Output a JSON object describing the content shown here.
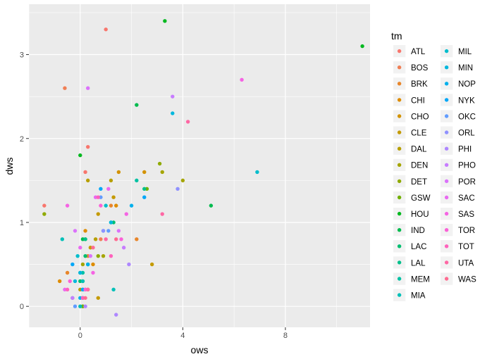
{
  "chart_data": {
    "type": "scatter",
    "xlabel": "ows",
    "ylabel": "dws",
    "xlim": [
      -2,
      11.3
    ],
    "ylim": [
      -0.25,
      3.6
    ],
    "xticks": [
      0,
      4,
      8
    ],
    "xtick_labels": [
      "0",
      "4",
      "8"
    ],
    "yticks": [
      0,
      1,
      2,
      3
    ],
    "ytick_labels": [
      "0",
      "1",
      "2",
      "3"
    ],
    "grid": true,
    "panel_background": "#EBEBEB",
    "legend": {
      "title": "tm",
      "position": "right",
      "columns": 2
    },
    "series": [
      {
        "name": "ATL",
        "color": "#F8766D",
        "points": [
          [
            1.0,
            3.3
          ],
          [
            0.3,
            1.9
          ],
          [
            0.2,
            1.6
          ],
          [
            -1.4,
            1.2
          ]
        ]
      },
      {
        "name": "BOS",
        "color": "#F07F55",
        "points": [
          [
            -0.6,
            2.6
          ],
          [
            0.8,
            0.8
          ],
          [
            0.2,
            0.2
          ],
          [
            0.1,
            0.0
          ]
        ]
      },
      {
        "name": "BRK",
        "color": "#E8862B",
        "points": [
          [
            1.2,
            1.2
          ],
          [
            0.3,
            0.6
          ],
          [
            -0.5,
            0.4
          ],
          [
            2.2,
            0.8
          ]
        ]
      },
      {
        "name": "CHI",
        "color": "#DE8C00",
        "points": [
          [
            1.4,
            1.2
          ],
          [
            0.5,
            0.5
          ],
          [
            0.2,
            0.9
          ],
          [
            -0.8,
            0.3
          ]
        ]
      },
      {
        "name": "CHO",
        "color": "#D39200",
        "points": [
          [
            1.5,
            1.6
          ],
          [
            2.5,
            1.6
          ],
          [
            0.3,
            0.2
          ],
          [
            0.1,
            0.1
          ]
        ]
      },
      {
        "name": "CLE",
        "color": "#C49A00",
        "points": [
          [
            1.3,
            1.3
          ],
          [
            0.7,
            1.1
          ],
          [
            2.8,
            0.5
          ],
          [
            0.7,
            0.1
          ],
          [
            0.4,
            0.7
          ]
        ]
      },
      {
        "name": "DAL",
        "color": "#B79F00",
        "points": [
          [
            1.2,
            1.5
          ],
          [
            0.3,
            1.5
          ],
          [
            0.0,
            0.2
          ],
          [
            0.6,
            0.8
          ]
        ]
      },
      {
        "name": "DEN",
        "color": "#A5A500",
        "points": [
          [
            3.2,
            1.6
          ],
          [
            4.0,
            1.5
          ],
          [
            0.9,
            0.6
          ],
          [
            0.1,
            0.5
          ]
        ]
      },
      {
        "name": "DET",
        "color": "#8FAA00",
        "points": [
          [
            3.1,
            1.7
          ],
          [
            -1.4,
            1.1
          ],
          [
            0.7,
            0.6
          ],
          [
            0.1,
            0.3
          ]
        ]
      },
      {
        "name": "GSW",
        "color": "#72B000",
        "points": [
          [
            2.6,
            1.4
          ],
          [
            0.2,
            0.8
          ],
          [
            0.1,
            0.0
          ]
        ]
      },
      {
        "name": "HOU",
        "color": "#00B81F",
        "points": [
          [
            3.3,
            3.4
          ],
          [
            11.0,
            3.1
          ],
          [
            0.0,
            1.8
          ],
          [
            0.3,
            0.5
          ]
        ]
      },
      {
        "name": "IND",
        "color": "#00BB4E",
        "points": [
          [
            5.1,
            1.2
          ],
          [
            2.2,
            2.4
          ],
          [
            0.1,
            0.8
          ],
          [
            0.1,
            0.1
          ]
        ]
      },
      {
        "name": "LAC",
        "color": "#00BE70",
        "points": [
          [
            1.3,
            1.0
          ],
          [
            0.2,
            0.6
          ],
          [
            0.0,
            0.3
          ]
        ]
      },
      {
        "name": "LAL",
        "color": "#00C08B",
        "points": [
          [
            2.5,
            1.4
          ],
          [
            0.2,
            0.8
          ],
          [
            0.0,
            0.4
          ]
        ]
      },
      {
        "name": "MEM",
        "color": "#00C1A3",
        "points": [
          [
            2.2,
            1.5
          ],
          [
            1.2,
            1.0
          ],
          [
            0.1,
            0.4
          ],
          [
            -0.3,
            0.1
          ]
        ]
      },
      {
        "name": "MIA",
        "color": "#00C0B8",
        "points": [
          [
            1.3,
            0.2
          ],
          [
            -0.7,
            0.8
          ],
          [
            0.1,
            0.3
          ],
          [
            0.0,
            0.0
          ]
        ]
      },
      {
        "name": "MIL",
        "color": "#00BDCC",
        "points": [
          [
            6.9,
            1.6
          ],
          [
            1.0,
            1.2
          ],
          [
            -0.1,
            0.6
          ],
          [
            0.1,
            0.2
          ]
        ]
      },
      {
        "name": "MIN",
        "color": "#00B7DD",
        "points": [
          [
            3.6,
            2.3
          ],
          [
            1.2,
            1.0
          ],
          [
            0.0,
            0.4
          ],
          [
            -0.2,
            0.3
          ]
        ]
      },
      {
        "name": "NOP",
        "color": "#00B0EC",
        "points": [
          [
            2.0,
            1.2
          ],
          [
            0.9,
            0.9
          ],
          [
            0.3,
            0.5
          ],
          [
            0.0,
            0.1
          ]
        ]
      },
      {
        "name": "NYK",
        "color": "#00A7F8",
        "points": [
          [
            2.5,
            1.3
          ],
          [
            0.8,
            1.4
          ],
          [
            -0.3,
            0.5
          ],
          [
            0.1,
            0.2
          ]
        ]
      },
      {
        "name": "OKC",
        "color": "#619CFF",
        "points": [
          [
            0.8,
            1.3
          ],
          [
            1.1,
            0.9
          ],
          [
            -0.2,
            0.0
          ]
        ]
      },
      {
        "name": "ORL",
        "color": "#8F91FF",
        "points": [
          [
            3.8,
            1.4
          ],
          [
            0.9,
            0.9
          ],
          [
            0.1,
            0.1
          ]
        ]
      },
      {
        "name": "PHI",
        "color": "#AE87FF",
        "points": [
          [
            1.9,
            0.5
          ],
          [
            1.4,
            -0.1
          ],
          [
            0.2,
            0.0
          ]
        ]
      },
      {
        "name": "PHO",
        "color": "#C77CFF",
        "points": [
          [
            3.6,
            2.5
          ],
          [
            1.7,
            0.7
          ],
          [
            -0.3,
            0.1
          ]
        ]
      },
      {
        "name": "POR",
        "color": "#DB72FB",
        "points": [
          [
            0.3,
            2.6
          ],
          [
            1.5,
            0.9
          ],
          [
            0.4,
            0.6
          ],
          [
            -0.2,
            0.9
          ]
        ]
      },
      {
        "name": "SAC",
        "color": "#E96AF1",
        "points": [
          [
            1.1,
            1.4
          ],
          [
            0.6,
            1.3
          ],
          [
            0.0,
            0.7
          ],
          [
            -0.6,
            0.2
          ]
        ]
      },
      {
        "name": "SAS",
        "color": "#F564E3",
        "points": [
          [
            6.3,
            2.7
          ],
          [
            1.8,
            1.1
          ],
          [
            0.5,
            0.4
          ],
          [
            -0.5,
            1.2
          ]
        ]
      },
      {
        "name": "TOR",
        "color": "#FB61D7",
        "points": [
          [
            1.6,
            0.8
          ],
          [
            0.8,
            1.2
          ],
          [
            0.2,
            0.2
          ],
          [
            -0.4,
            0.3
          ]
        ]
      },
      {
        "name": "TOT",
        "color": "#FF62BC",
        "points": [
          [
            0.7,
            1.3
          ],
          [
            1.2,
            0.6
          ],
          [
            -0.5,
            0.2
          ],
          [
            0.1,
            0.1
          ]
        ]
      },
      {
        "name": "UTA",
        "color": "#FF67A4",
        "points": [
          [
            4.2,
            2.2
          ],
          [
            3.2,
            1.1
          ],
          [
            1.0,
            0.8
          ],
          [
            0.3,
            0.2
          ]
        ]
      },
      {
        "name": "WAS",
        "color": "#FF6C91",
        "points": [
          [
            1.4,
            0.8
          ],
          [
            0.5,
            0.7
          ],
          [
            0.2,
            0.1
          ]
        ]
      }
    ]
  }
}
